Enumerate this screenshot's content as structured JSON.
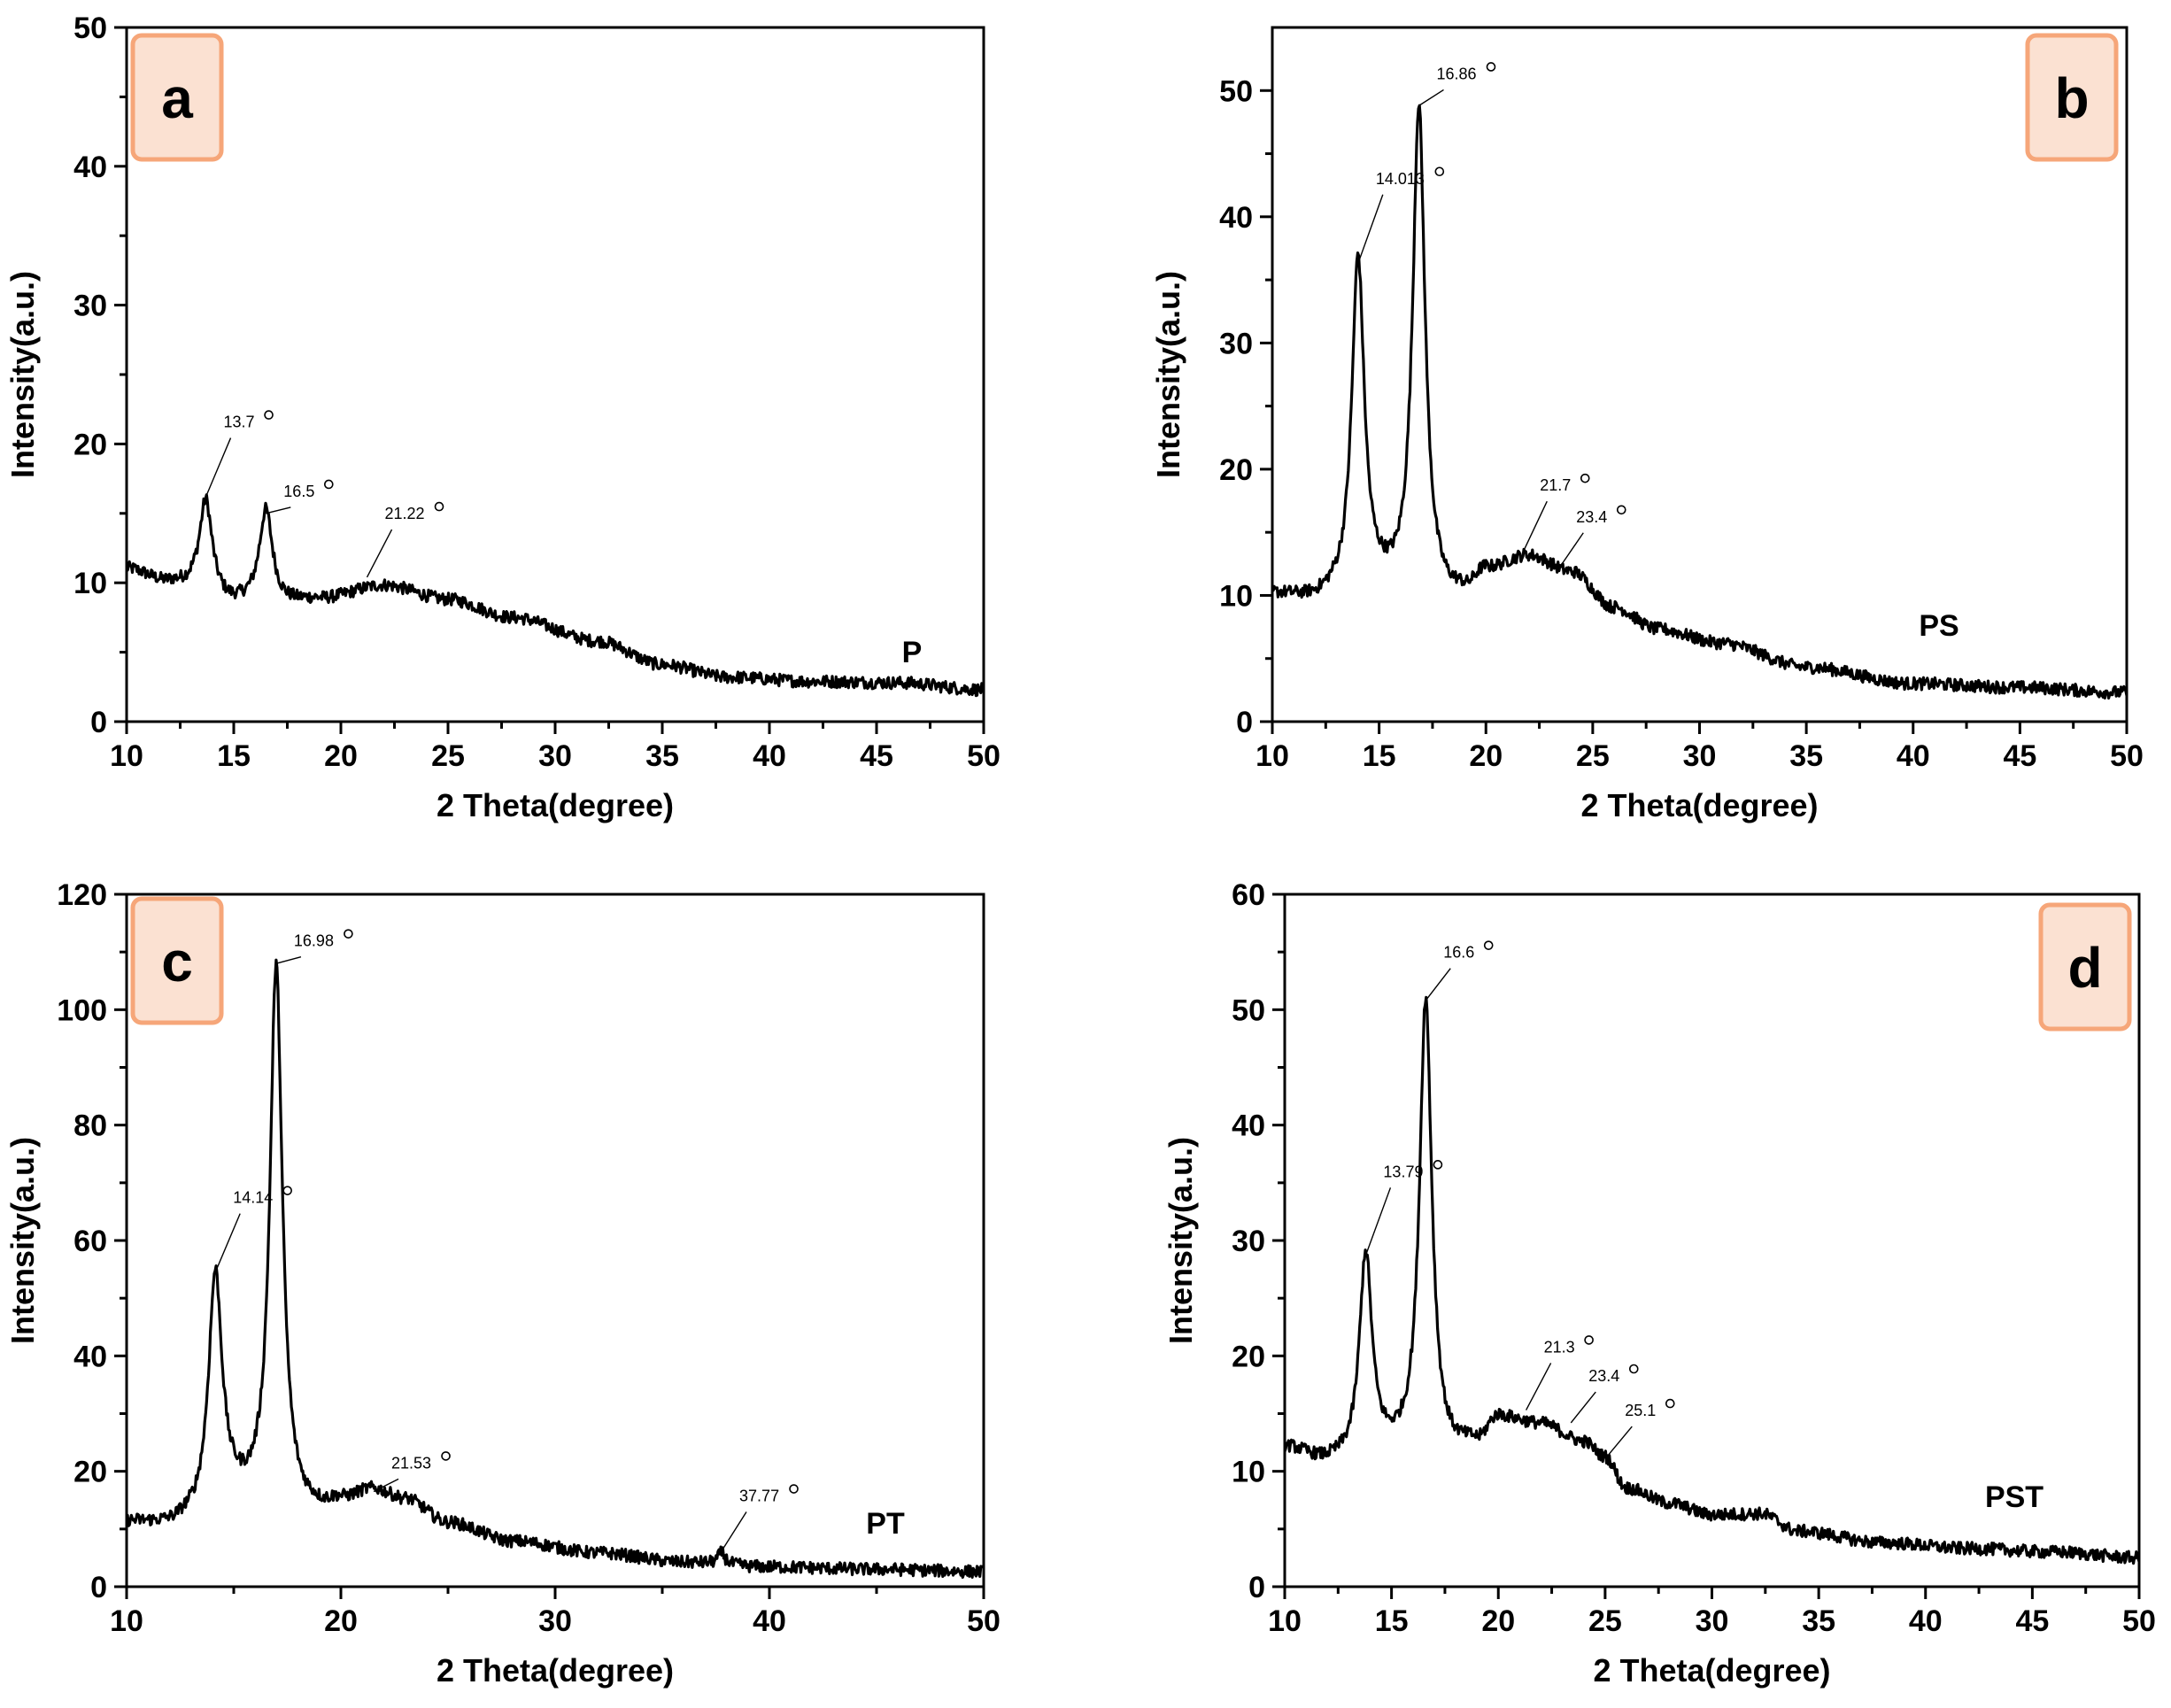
{
  "chart_data": [
    {
      "type": "line",
      "panel_label": "a",
      "sample_label": "P",
      "xlabel": "2 Theta(degree)",
      "ylabel": "Intensity(a.u.)",
      "xlim": [
        10,
        50
      ],
      "ylim": [
        0,
        50
      ],
      "xticks": [
        "10",
        "15",
        "20",
        "25",
        "30",
        "35",
        "40",
        "45",
        "50"
      ],
      "yticks": [
        "0",
        "10",
        "20",
        "30",
        "40",
        "50"
      ],
      "background": [
        [
          10,
          11
        ],
        [
          12,
          10
        ],
        [
          13,
          9.8
        ],
        [
          15,
          8.5
        ],
        [
          17,
          8.4
        ],
        [
          19,
          8.8
        ],
        [
          22,
          9.8
        ],
        [
          25,
          8.8
        ],
        [
          28,
          7.5
        ],
        [
          32,
          5.8
        ],
        [
          35,
          4.1
        ],
        [
          38,
          3.2
        ],
        [
          42,
          2.9
        ],
        [
          46,
          2.8
        ],
        [
          50,
          2.3
        ]
      ],
      "peaks": [
        {
          "x": 13.7,
          "h": 6.5,
          "w": 0.35
        },
        {
          "x": 16.5,
          "h": 6.8,
          "w": 0.38
        }
      ],
      "annotations": [
        {
          "label": "13.7",
          "x": 13.7,
          "y": 16.2,
          "ty": 21.2
        },
        {
          "label": "16.5",
          "x": 16.5,
          "y": 15.0,
          "ty": 16.2
        },
        {
          "label": "21.22",
          "x": 21.22,
          "y": 10.4,
          "ty": 14.6
        }
      ]
    },
    {
      "type": "line",
      "panel_label": "b",
      "sample_label": "PS",
      "xlabel": "2 Theta(degree)",
      "ylabel": "Intensity(a.u.)",
      "xlim": [
        10,
        50
      ],
      "ylim": [
        0,
        55
      ],
      "xticks": [
        "10",
        "15",
        "20",
        "25",
        "30",
        "35",
        "40",
        "45",
        "50"
      ],
      "yticks": [
        "0",
        "10",
        "20",
        "30",
        "40",
        "50"
      ],
      "background": [
        [
          10,
          10
        ],
        [
          12,
          9.6
        ],
        [
          13,
          9.8
        ],
        [
          15,
          10.3
        ],
        [
          16,
          10
        ],
        [
          18,
          9.5
        ],
        [
          19,
          10
        ],
        [
          20,
          11.8
        ],
        [
          22,
          13
        ],
        [
          24,
          11.8
        ],
        [
          26,
          9
        ],
        [
          28,
          7.3
        ],
        [
          31,
          6.2
        ],
        [
          35,
          4.3
        ],
        [
          40,
          3
        ],
        [
          45,
          2.7
        ],
        [
          50,
          2.3
        ]
      ],
      "peaks": [
        {
          "x": 14.013,
          "h": 26.5,
          "w": 0.35
        },
        {
          "x": 16.86,
          "h": 38.8,
          "w": 0.35
        }
      ],
      "annotations": [
        {
          "label": "14.013",
          "x": 14.013,
          "y": 36.3,
          "ty": 42.6
        },
        {
          "label": "16.86",
          "x": 16.86,
          "y": 48.8,
          "ty": 50.9
        },
        {
          "label": "21.7",
          "x": 21.7,
          "y": 13.3,
          "ty": 18.3
        },
        {
          "label": "23.4",
          "x": 23.4,
          "y": 12.1,
          "ty": 15.8
        }
      ]
    },
    {
      "type": "line",
      "panel_label": "c",
      "sample_label": "PT",
      "xlabel": "2 Theta(degree)",
      "ylabel": "Intensity(a.u.)",
      "xlim": [
        10,
        50
      ],
      "ylim": [
        0,
        120
      ],
      "xticks": [
        "10",
        "20",
        "30",
        "40",
        "50"
      ],
      "yticks": [
        "0",
        "20",
        "40",
        "60",
        "80",
        "100",
        "120"
      ],
      "background": [
        [
          10,
          11
        ],
        [
          12,
          10.5
        ],
        [
          13,
          11.3
        ],
        [
          15,
          14.5
        ],
        [
          16,
          14
        ],
        [
          18,
          12.5
        ],
        [
          19,
          13
        ],
        [
          20,
          14.5
        ],
        [
          21.5,
          16.5
        ],
        [
          23,
          15
        ],
        [
          25,
          11
        ],
        [
          28,
          7.8
        ],
        [
          32,
          5.8
        ],
        [
          36,
          4.2
        ],
        [
          40,
          3.4
        ],
        [
          45,
          3
        ],
        [
          50,
          2.6
        ]
      ],
      "peaks": [
        {
          "x": 14.14,
          "h": 40.5,
          "w": 0.38
        },
        {
          "x": 16.98,
          "h": 94,
          "w": 0.35
        },
        {
          "x": 37.77,
          "h": 2,
          "w": 0.2
        }
      ],
      "annotations": [
        {
          "label": "14.14",
          "x": 14.14,
          "y": 54.5,
          "ty": 66.5
        },
        {
          "label": "16.98",
          "x": 16.98,
          "y": 108,
          "ty": 111
        },
        {
          "label": "21.53",
          "x": 21.53,
          "y": 16.5,
          "ty": 20.5
        },
        {
          "label": "37.77",
          "x": 37.77,
          "y": 6.2,
          "ty": 14.8
        }
      ]
    },
    {
      "type": "line",
      "panel_label": "d",
      "sample_label": "PST",
      "xlabel": "2 Theta(degree)",
      "ylabel": "Intensity(a.u.)",
      "xlim": [
        10,
        50
      ],
      "ylim": [
        0,
        60
      ],
      "xticks": [
        "10",
        "15",
        "20",
        "25",
        "30",
        "35",
        "40",
        "45",
        "50"
      ],
      "yticks": [
        "0",
        "10",
        "20",
        "30",
        "40",
        "50",
        "60"
      ],
      "background": [
        [
          10,
          12
        ],
        [
          12,
          10.8
        ],
        [
          13,
          10.8
        ],
        [
          14.5,
          11.5
        ],
        [
          15.5,
          11.5
        ],
        [
          17.5,
          11.2
        ],
        [
          19,
          12.2
        ],
        [
          20,
          14.5
        ],
        [
          22,
          14
        ],
        [
          24,
          12.5
        ],
        [
          25,
          11.2
        ],
        [
          26,
          8.5
        ],
        [
          28,
          7.2
        ],
        [
          30,
          6.2
        ],
        [
          32.3,
          6.3
        ],
        [
          34,
          4.8
        ],
        [
          38,
          3.8
        ],
        [
          42,
          3.3
        ],
        [
          46,
          3
        ],
        [
          50,
          2.5
        ]
      ],
      "peaks": [
        {
          "x": 13.79,
          "h": 17.5,
          "w": 0.35
        },
        {
          "x": 16.6,
          "h": 39.5,
          "w": 0.35
        }
      ],
      "annotations": [
        {
          "label": "13.79",
          "x": 13.79,
          "y": 28.7,
          "ty": 35.5
        },
        {
          "label": "16.6",
          "x": 16.6,
          "y": 50.8,
          "ty": 54.5
        },
        {
          "label": "21.3",
          "x": 21.3,
          "y": 15.3,
          "ty": 20.3
        },
        {
          "label": "23.4",
          "x": 23.4,
          "y": 14.2,
          "ty": 17.8
        },
        {
          "label": "25.1",
          "x": 25.1,
          "y": 11.3,
          "ty": 14.8
        }
      ]
    }
  ]
}
